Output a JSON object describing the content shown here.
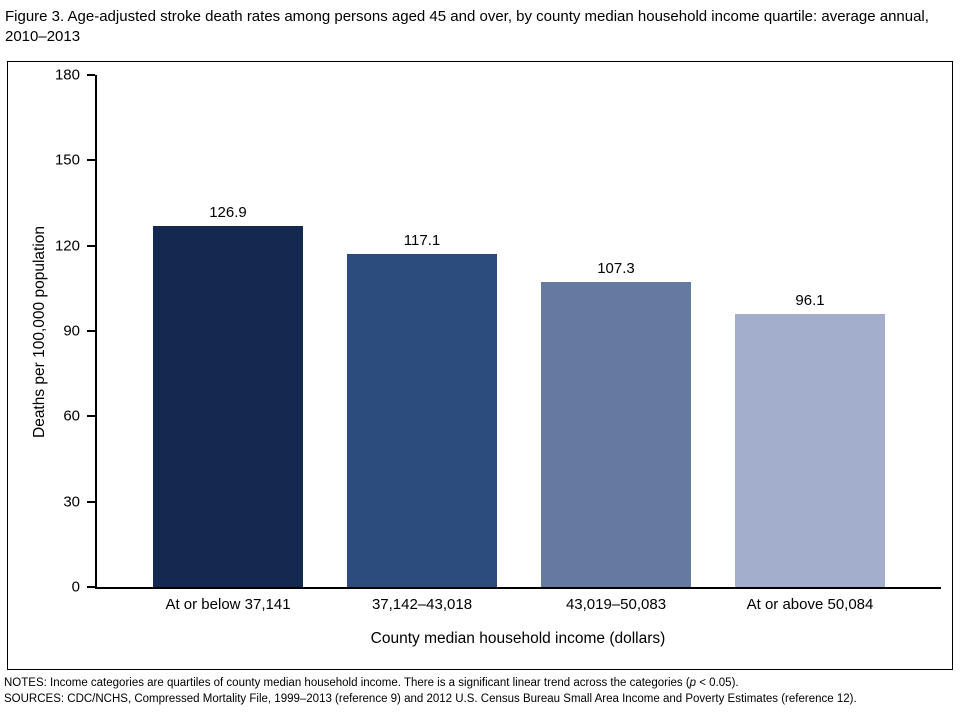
{
  "title": "Figure 3. Age-adjusted stroke death rates among persons aged 45 and over, by county median household income quartile: average annual, 2010–2013",
  "chart_data": {
    "type": "bar",
    "categories": [
      "At or below 37,141",
      "37,142–43,018",
      "43,019–50,083",
      "At or above 50,084"
    ],
    "values": [
      126.9,
      117.1,
      107.3,
      96.1
    ],
    "value_labels": [
      "126.9",
      "117.1",
      "107.3",
      "96.1"
    ],
    "title": "",
    "xlabel": "County median household income (dollars)",
    "ylabel": "Deaths per 100,000 population",
    "ylim": [
      0,
      180
    ],
    "yticks": [
      0,
      30,
      60,
      90,
      120,
      150,
      180
    ],
    "bar_colors": [
      "#13294f",
      "#2b4c7c",
      "#657a9f",
      "#a2aecb"
    ],
    "grid": false,
    "legend": "none"
  },
  "notes": {
    "notes_prefix": "NOTES: Income categories are quartiles of county median household income. There is a significant linear trend across the categories (",
    "notes_italic": "p",
    "notes_suffix": " < 0.05).",
    "sources": "SOURCES: CDC/NCHS, Compressed Mortality File, 1999–2013 (reference 9) and 2012 U.S. Census Bureau Small Area Income and Poverty Estimates (reference 12)."
  }
}
